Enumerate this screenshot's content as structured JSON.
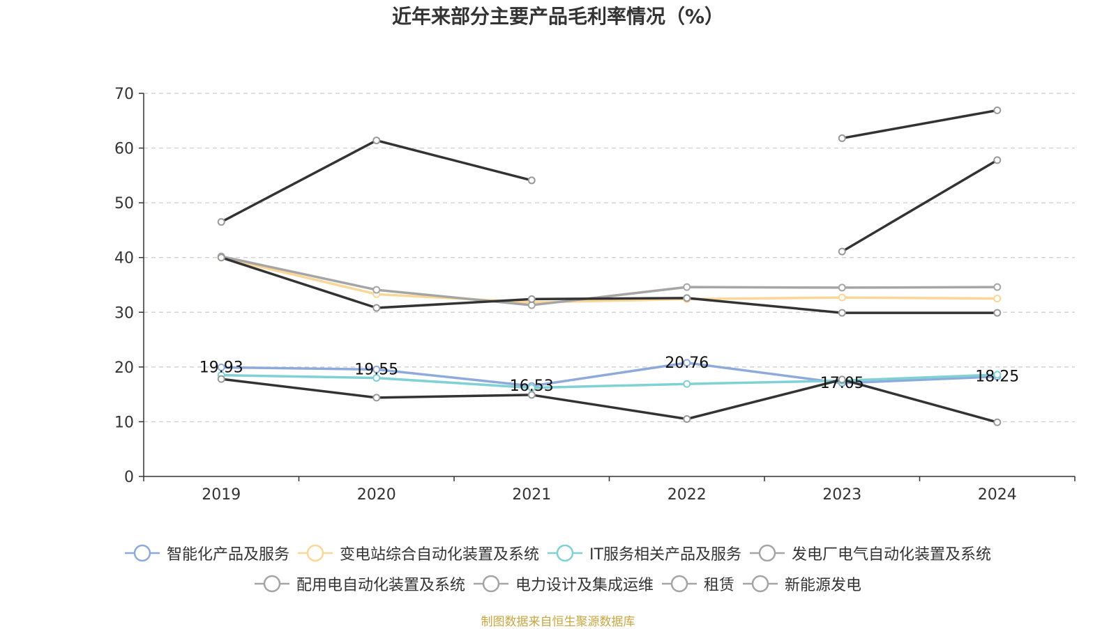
{
  "source_text": "制图数据来自恒生聚源数据库",
  "legend_rows": [
    [
      0,
      1,
      2,
      3
    ],
    [
      4,
      5,
      6,
      7
    ]
  ],
  "chart_data": {
    "type": "line",
    "title": "近年来部分主要产品毛利率情况（%）",
    "xlabel": "",
    "ylabel": "",
    "categories": [
      "2019",
      "2020",
      "2021",
      "2022",
      "2023",
      "2024"
    ],
    "ylim": [
      0,
      70
    ],
    "yticks": [
      0,
      10,
      20,
      30,
      40,
      50,
      60,
      70
    ],
    "grid": "horizontal-dashed",
    "legend_position": "bottom",
    "series": [
      {
        "name": "智能化产品及服务",
        "color": "#8eaadc",
        "values": [
          19.93,
          19.55,
          16.53,
          20.76,
          17.05,
          18.25
        ],
        "show_labels": true
      },
      {
        "name": "变电站综合自动化装置及系统",
        "color": "#fad797",
        "values": [
          40.0,
          33.3,
          31.8,
          32.4,
          32.7,
          32.5
        ],
        "show_labels": false
      },
      {
        "name": "IT服务相关产品及服务",
        "color": "#7fd1d4",
        "values": [
          18.5,
          18.0,
          16.2,
          16.9,
          17.5,
          18.6
        ],
        "show_labels": false
      },
      {
        "name": "发电厂电气自动化装置及系统",
        "color": "#a5a5a5",
        "values": [
          40.2,
          34.1,
          31.3,
          34.6,
          34.5,
          34.6
        ],
        "show_labels": false
      },
      {
        "name": "配用电自动化装置及系统",
        "color": "#333333",
        "values": [
          40.0,
          30.8,
          32.4,
          32.6,
          29.9,
          29.9
        ],
        "show_labels": false
      },
      {
        "name": "电力设计及集成运维",
        "color": "#333333",
        "values": [
          17.8,
          14.4,
          14.9,
          10.5,
          17.7,
          9.9
        ],
        "show_labels": false
      },
      {
        "name": "租赁",
        "color": "#333333",
        "values": [
          46.5,
          61.4,
          54.1,
          null,
          61.8,
          66.9
        ],
        "show_labels": false
      },
      {
        "name": "新能源发电",
        "color": "#333333",
        "values": [
          null,
          null,
          null,
          null,
          41.1,
          57.8
        ],
        "show_labels": false
      }
    ],
    "legend_icon_colors": [
      "#8eaadc",
      "#fad797",
      "#7fd1d4",
      "#a5a5a5",
      "#a5a5a5",
      "#a5a5a5",
      "#a5a5a5",
      "#a5a5a5"
    ]
  }
}
